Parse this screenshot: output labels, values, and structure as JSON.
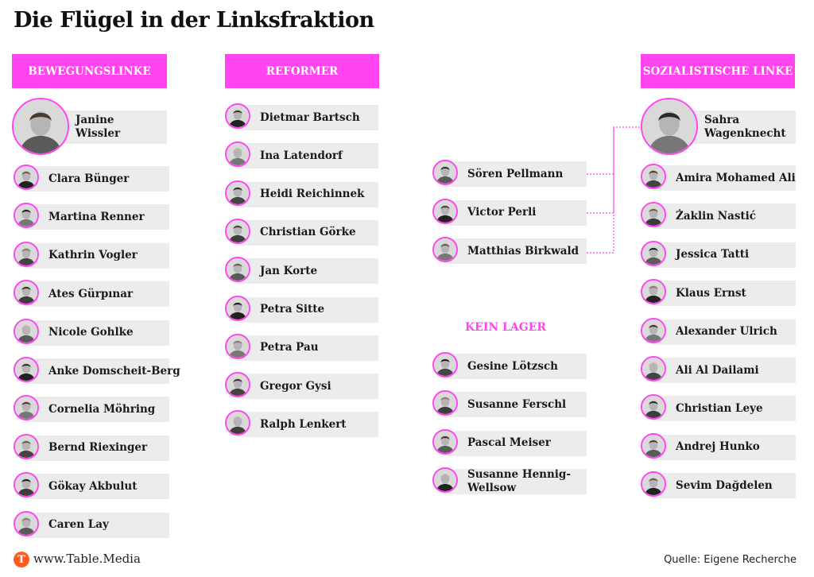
{
  "title": "Die Flügel in der Linksfraktion",
  "colors": {
    "accent": "#ff44f0",
    "bar": "#ececec",
    "logo": "#ff5a1f"
  },
  "groups": {
    "bewegungslinke": {
      "label": "BEWEGUNGSLINKE",
      "lead": "Janine\nWissler",
      "members": [
        "Clara Bünger",
        "Martina Renner",
        "Kathrin Vogler",
        "Ates Gürpınar",
        "Nicole Gohlke",
        "Anke Domscheit-Berg",
        "Cornelia Möhring",
        "Bernd Riexinger",
        "Gökay Akbulut",
        "Caren Lay"
      ]
    },
    "reformer": {
      "label": "REFORMER",
      "members": [
        "Dietmar Bartsch",
        "Ina Latendorf",
        "Heidi Reichinnek",
        "Christian Görke",
        "Jan Korte",
        "Petra Sitte",
        "Petra Pau",
        "Gregor Gysi",
        "Ralph Lenkert"
      ]
    },
    "mitte": {
      "members": [
        "Sören Pellmann",
        "Victor Perli",
        "Matthias Birkwald"
      ]
    },
    "kein_lager": {
      "label": "KEIN LAGER",
      "members": [
        "Gesine Lötzsch",
        "Susanne Ferschl",
        "Pascal Meiser",
        "Susanne Hennig-\nWellsow"
      ]
    },
    "sozialistische_linke": {
      "label": "SOZIALISTISCHE LINKE",
      "lead": "Sahra\nWagenknecht",
      "members": [
        "Amira Mohamed Ali",
        "Żaklin Nastić",
        "Jessica Tatti",
        "Klaus Ernst",
        "Alexander Ulrich",
        "Ali Al Dailami",
        "Christian Leye",
        "Andrej Hunko",
        "Sevim Dağdelen"
      ]
    }
  },
  "footer": {
    "logo_letter": "T",
    "site": "www.Table.Media",
    "source": "Quelle: Eigene Recherche"
  }
}
